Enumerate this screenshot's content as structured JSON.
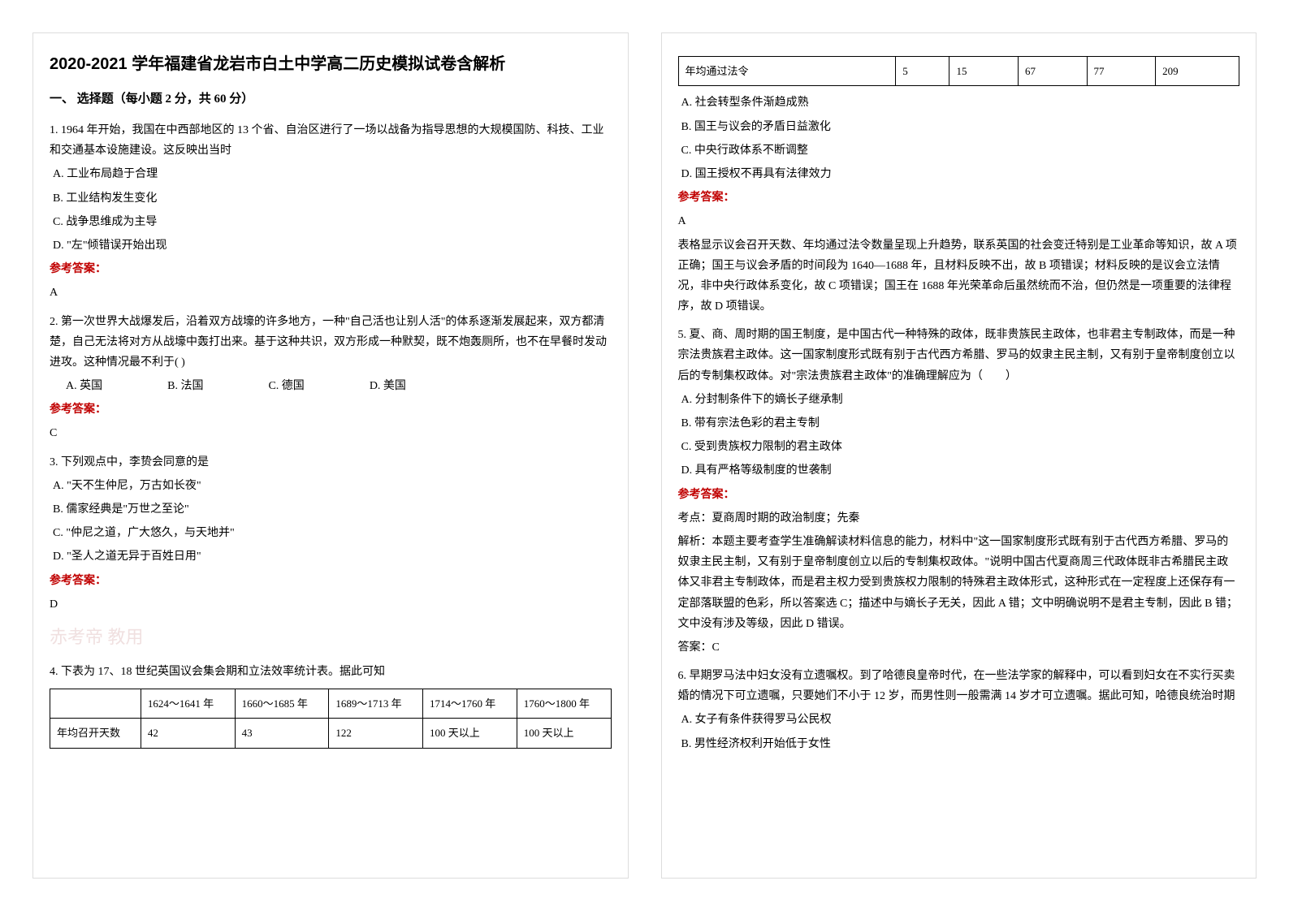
{
  "title": "2020-2021 学年福建省龙岩市白土中学高二历史模拟试卷含解析",
  "section1": "一、 选择题（每小题 2 分，共 60 分）",
  "q1": {
    "stem": "1. 1964 年开始，我国在中西部地区的 13 个省、自治区进行了一场以战备为指导思想的大规模国防、科技、工业和交通基本设施建设。这反映出当时",
    "A": "A. 工业布局趋于合理",
    "B": "B. 工业结构发生变化",
    "C": "C. 战争思维成为主导",
    "D": "D. \"左\"倾错误开始出现",
    "ansLabel": "参考答案：",
    "ans": "A"
  },
  "q2": {
    "stem": "2. 第一次世界大战爆发后，沿着双方战壕的许多地方，一种\"自己活也让别人活\"的体系逐渐发展起来，双方都清楚，自己无法将对方从战壕中轰打出来。基于这种共识，双方形成一种默契，既不炮轰厕所，也不在早餐时发动进攻。这种情况最不利于(    )",
    "A": "A. 英国",
    "B": "B. 法国",
    "C": "C. 德国",
    "D": "D. 美国",
    "ansLabel": "参考答案：",
    "ans": "C"
  },
  "q3": {
    "stem": "3. 下列观点中，李贽会同意的是",
    "A": "A. \"天不生仲尼，万古如长夜\"",
    "B": "B. 儒家经典是\"万世之至论\"",
    "C": "C. \"仲尼之道，广大悠久，与天地并\"",
    "D": "D. \"圣人之道无异于百姓日用\"",
    "ansLabel": "参考答案：",
    "ans": "D"
  },
  "q4": {
    "stem": "4. 下表为 17、18 世纪英国议会集会期和立法效率统计表。据此可知",
    "table": {
      "headers": [
        "",
        "1624～1641 年",
        "1660～1685 年",
        "1689～1713 年",
        "1714～1760 年",
        "1760～1800 年"
      ],
      "row1": [
        "年均召开天数",
        "42",
        "43",
        "122",
        "100 天以上",
        "100 天以上"
      ],
      "row2": [
        "年均通过法令",
        "5",
        "15",
        "67",
        "77",
        "209"
      ]
    },
    "A": "A. 社会转型条件渐趋成熟",
    "B": "B. 国王与议会的矛盾日益激化",
    "C": "C. 中央行政体系不断调整",
    "D": "D. 国王授权不再具有法律效力",
    "ansLabel": "参考答案：",
    "ans": "A",
    "explain": "表格显示议会召开天数、年均通过法令数量呈现上升趋势，联系英国的社会变迁特别是工业革命等知识，故 A 项正确；国王与议会矛盾的时间段为 1640—1688 年，且材料反映不出，故 B 项错误；材料反映的是议会立法情况，非中央行政体系变化，故 C 项错误；国王在 1688 年光荣革命后虽然统而不治，但仍然是一项重要的法律程序，故 D 项错误。"
  },
  "q5": {
    "stem": "5. 夏、商、周时期的国王制度，是中国古代一种特殊的政体，既非贵族民主政体，也非君主专制政体，而是一种宗法贵族君主政体。这一国家制度形式既有别于古代西方希腊、罗马的奴隶主民主制，又有别于皇帝制度创立以后的专制集权政体。对\"宗法贵族君主政体\"的准确理解应为（　　）",
    "A": "A. 分封制条件下的嫡长子继承制",
    "B": "B. 带有宗法色彩的君主专制",
    "C": "C. 受到贵族权力限制的君主政体",
    "D": "D. 具有严格等级制度的世袭制",
    "ansLabel": "参考答案：",
    "kaodian": "考点：夏商周时期的政治制度；先秦",
    "explain": "解析：本题主要考查学生准确解读材料信息的能力，材料中\"这一国家制度形式既有别于古代西方希腊、罗马的奴隶主民主制，又有别于皇帝制度创立以后的专制集权政体。\"说明中国古代夏商周三代政体既非古希腊民主政体又非君主专制政体，而是君主权力受到贵族权力限制的特殊君主政体形式，这种形式在一定程度上还保存有一定部落联盟的色彩，所以答案选 C；描述中与嫡长子无关，因此 A 错；文中明确说明不是君主专制，因此 B 错；文中没有涉及等级，因此 D 错误。",
    "ans": "答案：C"
  },
  "q6": {
    "stem": "6. 早期罗马法中妇女没有立遗嘱权。到了哈德良皇帝时代，在一些法学家的解释中，可以看到妇女在不实行买卖婚的情况下可立遗嘱，只要她们不小于 12 岁，而男性则一般需满 14 岁才可立遗嘱。据此可知，哈德良统治时期",
    "A": "A. 女子有条件获得罗马公民权",
    "B": "B. 男性经济权利开始低于女性"
  },
  "watermark": "赤考帝 教用"
}
